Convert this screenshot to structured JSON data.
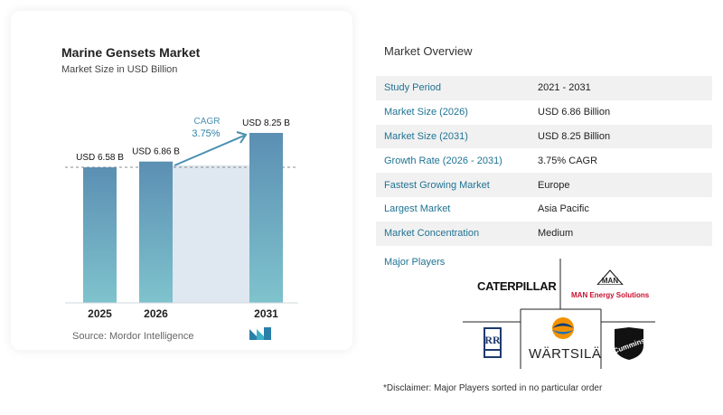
{
  "chart_card": {
    "title": "Marine Gensets Market",
    "subtitle": "Market Size in USD Billion",
    "source": "Source: Mordor Intelligence",
    "cagr_label": "CAGR",
    "cagr_value": "3.75%"
  },
  "chart_data": {
    "type": "bar",
    "categories": [
      "2025",
      "2026",
      "2031"
    ],
    "values": [
      6.58,
      6.86,
      8.25
    ],
    "data_labels": [
      "USD 6.58 B",
      "USD 6.86 B",
      "USD 8.25 B"
    ],
    "title": "Marine Gensets Market",
    "subtitle": "Market Size in USD Billion",
    "annotation": "CAGR 3.75%",
    "colors": {
      "bar_top": "#5b8fb3",
      "bar_bottom": "#7fc3cd",
      "cagr": "#4a8fb0",
      "band": "#dfe8f0"
    }
  },
  "overview": {
    "title": "Market Overview",
    "rows": [
      {
        "key": "Study Period",
        "value": "2021 - 2031"
      },
      {
        "key": "Market Size (2026)",
        "value": "USD 6.86 Billion"
      },
      {
        "key": "Market Size (2031)",
        "value": "USD 8.25 Billion"
      },
      {
        "key": "Growth Rate (2026 - 2031)",
        "value": "3.75% CAGR"
      },
      {
        "key": "Fastest Growing Market",
        "value": "Europe"
      },
      {
        "key": "Largest Market",
        "value": "Asia Pacific"
      },
      {
        "key": "Market Concentration",
        "value": "Medium"
      }
    ],
    "players_label": "Major Players",
    "players": {
      "caterpillar": "CATERPILLAR",
      "man_top": "MAN",
      "man_bottom": "MAN Energy Solutions",
      "rolls_royce": "Rolls-Royce",
      "wartsila": "WÄRTSILÄ",
      "cummins": "Cummins"
    },
    "disclaimer": "*Disclaimer: Major Players sorted in no particular order"
  },
  "accent_color": "#1f7393"
}
